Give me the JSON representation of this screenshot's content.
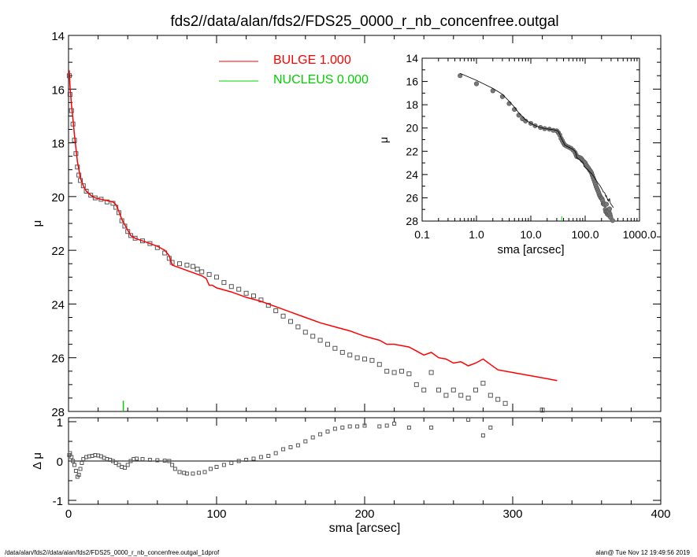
{
  "title": "fds2//data/alan/fds2/FDS25_0000_r_nb_concenfree.outgal",
  "footer": {
    "left": "/data/alan/fds2//data/alan/fds2/FDS25_0000_r_nb_concenfree.outgal_1dprof",
    "right": "alan@  Tue Nov 12 19:49:56 2019"
  },
  "legend": {
    "items": [
      {
        "label": "BULGE  1.000",
        "color": "#ff0000"
      },
      {
        "label": "NUCLEUS  0.000",
        "color": "#00d000"
      }
    ]
  },
  "colors": {
    "bulge": "#ff0000",
    "nucleus": "#00d000",
    "data": "#555555",
    "axes": "#000000"
  },
  "chart_data": [
    {
      "type": "scatter",
      "name": "main-profile",
      "xlabel": "",
      "ylabel": "μ",
      "xlim": [
        0,
        400
      ],
      "ylim": [
        28,
        14
      ],
      "yticks": [
        "14",
        "16",
        "18",
        "20",
        "22",
        "24",
        "26",
        "28"
      ],
      "series": [
        {
          "role": "data",
          "points": [
            [
              0.5,
              15.5
            ],
            [
              1,
              16.2
            ],
            [
              2,
              16.8
            ],
            [
              3,
              17.3
            ],
            [
              4,
              17.9
            ],
            [
              5,
              18.4
            ],
            [
              6,
              18.9
            ],
            [
              7,
              19.2
            ],
            [
              8,
              19.4
            ],
            [
              10,
              19.6
            ],
            [
              12,
              19.8
            ],
            [
              15,
              19.95
            ],
            [
              18,
              20.05
            ],
            [
              22,
              20.1
            ],
            [
              26,
              20.2
            ],
            [
              30,
              20.25
            ],
            [
              32,
              20.4
            ],
            [
              34,
              20.6
            ],
            [
              36,
              20.9
            ],
            [
              38,
              21.1
            ],
            [
              40,
              21.3
            ],
            [
              42,
              21.45
            ],
            [
              45,
              21.55
            ],
            [
              50,
              21.65
            ],
            [
              55,
              21.75
            ],
            [
              60,
              21.9
            ],
            [
              65,
              22.1
            ],
            [
              68,
              22.3
            ],
            [
              70,
              22.45
            ],
            [
              75,
              22.5
            ],
            [
              80,
              22.55
            ],
            [
              84,
              22.6
            ],
            [
              87,
              22.7
            ],
            [
              90,
              22.8
            ],
            [
              95,
              22.9
            ],
            [
              100,
              23.0
            ],
            [
              105,
              23.2
            ],
            [
              110,
              23.35
            ],
            [
              115,
              23.45
            ],
            [
              120,
              23.6
            ],
            [
              125,
              23.7
            ],
            [
              130,
              23.85
            ],
            [
              135,
              24.05
            ],
            [
              140,
              24.25
            ],
            [
              145,
              24.45
            ],
            [
              150,
              24.65
            ],
            [
              155,
              24.85
            ],
            [
              160,
              25.05
            ],
            [
              165,
              25.2
            ],
            [
              170,
              25.35
            ],
            [
              175,
              25.5
            ],
            [
              180,
              25.65
            ],
            [
              185,
              25.8
            ],
            [
              190,
              25.9
            ],
            [
              195,
              26.0
            ],
            [
              200,
              26.05
            ],
            [
              205,
              26.1
            ],
            [
              210,
              26.25
            ],
            [
              215,
              26.5
            ],
            [
              220,
              26.55
            ],
            [
              225,
              26.5
            ],
            [
              230,
              26.6
            ],
            [
              235,
              27.0
            ],
            [
              240,
              27.2
            ],
            [
              245,
              26.55
            ],
            [
              250,
              27.2
            ],
            [
              255,
              27.4
            ],
            [
              260,
              27.2
            ],
            [
              265,
              27.4
            ],
            [
              270,
              27.5
            ],
            [
              275,
              27.2
            ],
            [
              280,
              26.95
            ],
            [
              285,
              27.4
            ],
            [
              290,
              27.55
            ],
            [
              295,
              27.7
            ],
            [
              320,
              27.95
            ]
          ]
        },
        {
          "role": "model",
          "name": "BULGE",
          "points": [
            [
              0.5,
              15.3
            ],
            [
              1,
              15.9
            ],
            [
              2,
              16.6
            ],
            [
              3,
              17.1
            ],
            [
              4,
              17.7
            ],
            [
              5,
              18.2
            ],
            [
              6,
              18.7
            ],
            [
              7,
              19.0
            ],
            [
              8,
              19.3
            ],
            [
              10,
              19.6
            ],
            [
              12,
              19.8
            ],
            [
              15,
              19.95
            ],
            [
              18,
              20.05
            ],
            [
              22,
              20.1
            ],
            [
              26,
              20.15
            ],
            [
              30,
              20.2
            ],
            [
              32,
              20.3
            ],
            [
              34,
              20.55
            ],
            [
              36,
              20.85
            ],
            [
              38,
              21.05
            ],
            [
              40,
              21.25
            ],
            [
              42,
              21.45
            ],
            [
              45,
              21.55
            ],
            [
              50,
              21.65
            ],
            [
              55,
              21.75
            ],
            [
              60,
              21.85
            ],
            [
              65,
              22.0
            ],
            [
              68,
              22.2
            ],
            [
              70,
              22.55
            ],
            [
              75,
              22.65
            ],
            [
              80,
              22.75
            ],
            [
              85,
              22.85
            ],
            [
              90,
              22.95
            ],
            [
              93,
              23.05
            ],
            [
              95,
              23.3
            ],
            [
              97,
              23.3
            ],
            [
              100,
              23.4
            ],
            [
              110,
              23.55
            ],
            [
              120,
              23.75
            ],
            [
              130,
              23.9
            ],
            [
              140,
              24.1
            ],
            [
              150,
              24.3
            ],
            [
              160,
              24.5
            ],
            [
              170,
              24.7
            ],
            [
              180,
              24.85
            ],
            [
              190,
              25.0
            ],
            [
              200,
              25.2
            ],
            [
              210,
              25.35
            ],
            [
              215,
              25.5
            ],
            [
              220,
              25.5
            ],
            [
              230,
              25.6
            ],
            [
              235,
              25.75
            ],
            [
              240,
              25.9
            ],
            [
              245,
              25.8
            ],
            [
              250,
              26.0
            ],
            [
              255,
              26.05
            ],
            [
              260,
              26.2
            ],
            [
              265,
              26.15
            ],
            [
              270,
              26.3
            ],
            [
              275,
              26.2
            ],
            [
              280,
              26.05
            ],
            [
              285,
              26.25
            ],
            [
              290,
              26.45
            ],
            [
              300,
              26.55
            ],
            [
              310,
              26.65
            ],
            [
              320,
              26.75
            ],
            [
              330,
              26.85
            ]
          ]
        }
      ],
      "nucleus_marker": {
        "x": 37,
        "y_top": 27.6,
        "y_bottom": 28
      }
    },
    {
      "type": "scatter",
      "name": "inset-log-profile",
      "xlabel": "sma [arcsec]",
      "ylabel": "μ",
      "xscale": "log",
      "xlim": [
        0.1,
        1000
      ],
      "ylim": [
        28,
        14
      ],
      "xticks": [
        "0.1",
        "1.0",
        "10.0",
        "100.0",
        "1000.0"
      ],
      "yticks": [
        "14",
        "16",
        "18",
        "20",
        "22",
        "24",
        "26",
        "28"
      ],
      "nucleus_marker": {
        "x": 37,
        "y_top": 27.6,
        "y_bottom": 28
      }
    },
    {
      "type": "scatter",
      "name": "residuals",
      "xlabel": "sma [arcsec]",
      "ylabel": "Δ μ",
      "xlim": [
        0,
        400
      ],
      "ylim": [
        -1.1,
        1.1
      ],
      "xticks": [
        "0",
        "100",
        "200",
        "300",
        "400"
      ],
      "yticks": [
        "1",
        "0",
        "-1"
      ],
      "reference_line": 0,
      "points": [
        [
          0.5,
          0.15
        ],
        [
          1,
          0.2
        ],
        [
          2,
          0.1
        ],
        [
          3,
          0.0
        ],
        [
          4,
          -0.1
        ],
        [
          5,
          -0.25
        ],
        [
          6,
          -0.4
        ],
        [
          7,
          -0.35
        ],
        [
          8,
          -0.2
        ],
        [
          9,
          -0.05
        ],
        [
          10,
          0.05
        ],
        [
          12,
          0.1
        ],
        [
          14,
          0.12
        ],
        [
          16,
          0.13
        ],
        [
          18,
          0.15
        ],
        [
          20,
          0.14
        ],
        [
          22,
          0.12
        ],
        [
          24,
          0.08
        ],
        [
          26,
          0.05
        ],
        [
          28,
          0.03
        ],
        [
          30,
          0.0
        ],
        [
          32,
          -0.05
        ],
        [
          34,
          -0.1
        ],
        [
          36,
          -0.15
        ],
        [
          38,
          -0.17
        ],
        [
          40,
          -0.1
        ],
        [
          42,
          0.0
        ],
        [
          44,
          0.05
        ],
        [
          46,
          0.06
        ],
        [
          50,
          0.05
        ],
        [
          55,
          0.03
        ],
        [
          60,
          0.02
        ],
        [
          65,
          0.01
        ],
        [
          68,
          0.0
        ],
        [
          70,
          -0.1
        ],
        [
          72,
          -0.2
        ],
        [
          75,
          -0.28
        ],
        [
          78,
          -0.3
        ],
        [
          80,
          -0.32
        ],
        [
          84,
          -0.32
        ],
        [
          88,
          -0.3
        ],
        [
          92,
          -0.28
        ],
        [
          96,
          -0.2
        ],
        [
          100,
          -0.15
        ],
        [
          105,
          -0.1
        ],
        [
          110,
          -0.05
        ],
        [
          115,
          0.0
        ],
        [
          120,
          0.03
        ],
        [
          125,
          0.06
        ],
        [
          130,
          0.1
        ],
        [
          135,
          0.13
        ],
        [
          140,
          0.2
        ],
        [
          145,
          0.3
        ],
        [
          150,
          0.35
        ],
        [
          155,
          0.4
        ],
        [
          160,
          0.5
        ],
        [
          165,
          0.6
        ],
        [
          170,
          0.68
        ],
        [
          175,
          0.75
        ],
        [
          180,
          0.82
        ],
        [
          185,
          0.85
        ],
        [
          190,
          0.88
        ],
        [
          195,
          0.88
        ],
        [
          200,
          0.9
        ],
        [
          210,
          0.88
        ],
        [
          215,
          0.9
        ],
        [
          220,
          0.95
        ],
        [
          230,
          0.85
        ],
        [
          245,
          0.85
        ],
        [
          270,
          1.05
        ],
        [
          280,
          0.65
        ],
        [
          285,
          0.85
        ]
      ]
    }
  ]
}
